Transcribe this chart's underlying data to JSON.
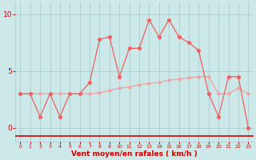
{
  "x_labels": [
    0,
    1,
    2,
    3,
    4,
    5,
    6,
    7,
    8,
    9,
    10,
    11,
    12,
    13,
    14,
    15,
    16,
    17,
    18,
    19,
    20,
    21,
    22,
    23
  ],
  "avg_wind": [
    3.0,
    3.0,
    3.0,
    3.0,
    3.0,
    3.0,
    3.0,
    3.0,
    3.1,
    3.3,
    3.5,
    3.6,
    3.8,
    3.9,
    4.0,
    4.2,
    4.3,
    4.4,
    4.5,
    4.5,
    3.0,
    3.0,
    3.5,
    3.0
  ],
  "gust_wind": [
    3.0,
    3.0,
    1.0,
    3.0,
    1.0,
    3.0,
    3.0,
    4.0,
    7.8,
    8.0,
    4.5,
    7.0,
    7.0,
    9.5,
    8.0,
    9.5,
    8.0,
    7.5,
    6.8,
    3.0,
    1.0,
    4.5,
    4.5,
    0.0
  ],
  "line_color_avg": "#f4a0a0",
  "line_color_gust": "#f06060",
  "bg_color": "#cce8e8",
  "grid_color": "#aacccc",
  "xlabel": "Vent moyen/en rafales ( km/h )",
  "xlabel_color": "#cc0000",
  "tick_color": "#cc0000",
  "arrow_line_color": "#cc0000",
  "ylim": [
    -1.2,
    11.0
  ],
  "yticks": [
    0,
    5,
    10
  ],
  "xticks": [
    0,
    1,
    2,
    3,
    4,
    5,
    6,
    7,
    8,
    9,
    10,
    11,
    12,
    13,
    14,
    15,
    16,
    17,
    18,
    19,
    20,
    21,
    22,
    23
  ]
}
